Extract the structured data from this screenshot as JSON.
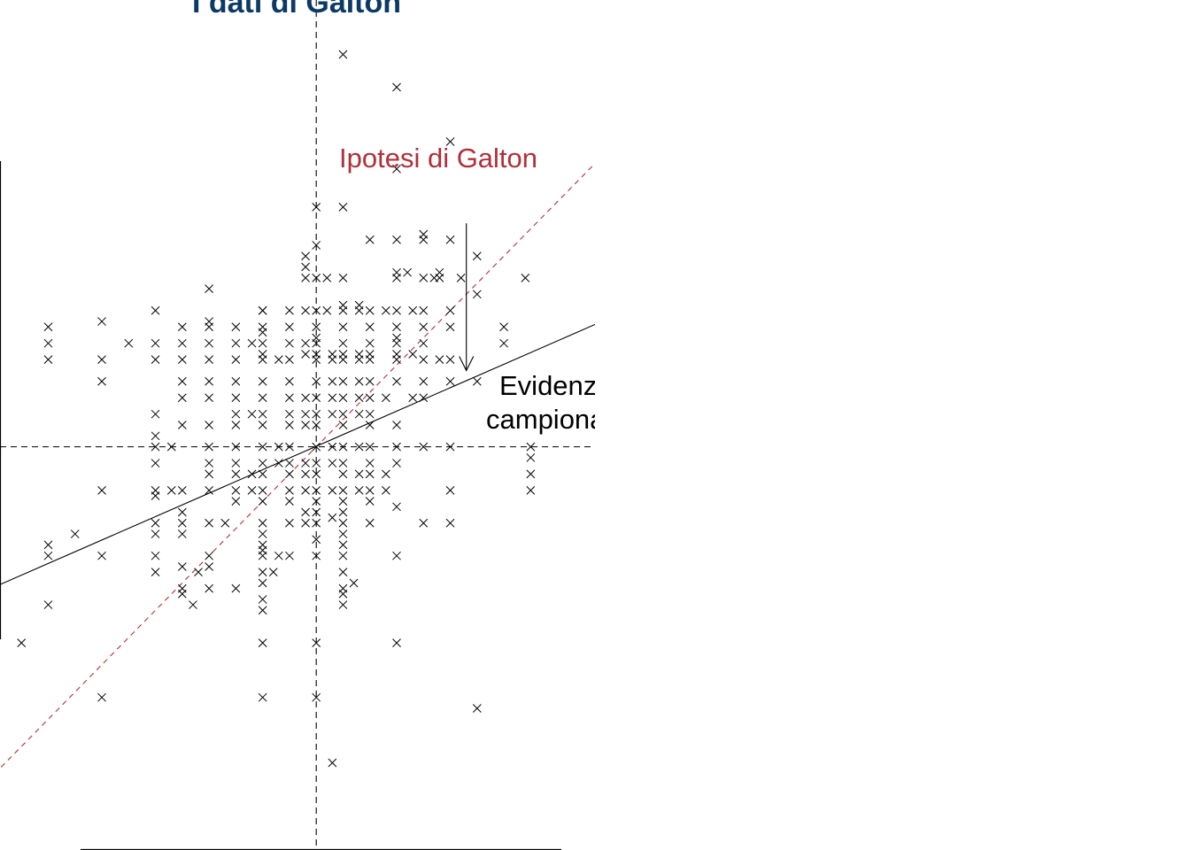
{
  "chart_data": {
    "type": "scatter",
    "title": "I dati di Galton",
    "marker": "x",
    "xlabel": "",
    "ylabel": "",
    "xlim": [
      62.4,
      73.5
    ],
    "ylim": [
      60.7,
      76.3
    ],
    "mean_x": 68.3,
    "mean_y": 68.1,
    "guides": {
      "mean_lines": "dashed",
      "color": "#000000"
    },
    "hypothesis_line": {
      "label": "Ipotesi di Galton",
      "slope": 1,
      "intercept": -0.2,
      "style": "dashed",
      "color": "#b0303a"
    },
    "regression_line": {
      "label": "Evidenza campionaria",
      "label_lines": [
        "Evidenza",
        "campionaria"
      ],
      "slope": 0.43,
      "intercept": 38.74,
      "style": "solid",
      "color": "#000000"
    },
    "arrow": {
      "x": 71.1,
      "from_y": 72.2,
      "to_y": 69.5,
      "color": "#000000"
    },
    "points": [
      [
        68.8,
        75.3
      ],
      [
        69.8,
        74.7
      ],
      [
        70.8,
        73.7
      ],
      [
        69.8,
        73.2
      ],
      [
        68.3,
        72.5
      ],
      [
        68.8,
        72.5
      ],
      [
        68.3,
        71.8
      ],
      [
        68.1,
        71.6
      ],
      [
        69.3,
        71.9
      ],
      [
        69.8,
        71.9
      ],
      [
        70.3,
        71.9
      ],
      [
        70.3,
        72.0
      ],
      [
        70.8,
        71.9
      ],
      [
        71.3,
        71.6
      ],
      [
        68.1,
        71.4
      ],
      [
        68.1,
        71.2
      ],
      [
        68.3,
        71.2
      ],
      [
        68.5,
        71.2
      ],
      [
        68.8,
        71.2
      ],
      [
        69.8,
        71.3
      ],
      [
        70.0,
        71.3
      ],
      [
        69.8,
        71.2
      ],
      [
        70.3,
        71.2
      ],
      [
        70.5,
        71.2
      ],
      [
        70.6,
        71.2
      ],
      [
        71.0,
        71.2
      ],
      [
        72.2,
        71.2
      ],
      [
        70.6,
        71.3
      ],
      [
        66.3,
        71.0
      ],
      [
        71.3,
        70.9
      ],
      [
        68.8,
        70.7
      ],
      [
        69.1,
        70.7
      ],
      [
        67.3,
        70.6
      ],
      [
        64.3,
        70.4
      ],
      [
        65.3,
        70.6
      ],
      [
        66.3,
        70.4
      ],
      [
        67.3,
        70.6
      ],
      [
        67.8,
        70.6
      ],
      [
        68.1,
        70.6
      ],
      [
        68.3,
        70.6
      ],
      [
        68.5,
        70.6
      ],
      [
        68.8,
        70.6
      ],
      [
        69.1,
        70.6
      ],
      [
        69.3,
        70.6
      ],
      [
        69.6,
        70.6
      ],
      [
        69.8,
        70.6
      ],
      [
        70.1,
        70.6
      ],
      [
        70.3,
        70.6
      ],
      [
        70.8,
        70.6
      ],
      [
        63.3,
        70.3
      ],
      [
        65.8,
        70.3
      ],
      [
        66.3,
        70.3
      ],
      [
        66.8,
        70.3
      ],
      [
        67.3,
        70.3
      ],
      [
        67.3,
        70.2
      ],
      [
        67.8,
        70.3
      ],
      [
        68.3,
        70.3
      ],
      [
        68.3,
        70.1
      ],
      [
        68.8,
        70.3
      ],
      [
        69.3,
        70.3
      ],
      [
        69.8,
        70.3
      ],
      [
        69.8,
        70.1
      ],
      [
        70.3,
        70.3
      ],
      [
        70.8,
        70.3
      ],
      [
        71.8,
        70.3
      ],
      [
        63.3,
        70.0
      ],
      [
        64.8,
        70.0
      ],
      [
        65.3,
        70.0
      ],
      [
        65.8,
        70.0
      ],
      [
        66.3,
        70.0
      ],
      [
        66.8,
        70.0
      ],
      [
        67.1,
        70.0
      ],
      [
        67.3,
        70.0
      ],
      [
        67.8,
        70.0
      ],
      [
        68.1,
        70.0
      ],
      [
        68.3,
        70.0
      ],
      [
        68.8,
        70.0
      ],
      [
        69.3,
        70.0
      ],
      [
        69.8,
        70.0
      ],
      [
        70.3,
        70.0
      ],
      [
        71.8,
        70.0
      ],
      [
        67.3,
        69.8
      ],
      [
        68.1,
        69.8
      ],
      [
        68.3,
        69.8
      ],
      [
        68.6,
        69.8
      ],
      [
        68.8,
        69.8
      ],
      [
        69.1,
        69.8
      ],
      [
        69.3,
        69.8
      ],
      [
        69.8,
        69.8
      ],
      [
        70.1,
        69.8
      ],
      [
        63.3,
        69.7
      ],
      [
        64.3,
        69.7
      ],
      [
        65.3,
        69.7
      ],
      [
        65.8,
        69.7
      ],
      [
        66.3,
        69.7
      ],
      [
        66.8,
        69.7
      ],
      [
        67.3,
        69.7
      ],
      [
        67.6,
        69.7
      ],
      [
        67.8,
        69.7
      ],
      [
        68.3,
        69.7
      ],
      [
        68.6,
        69.7
      ],
      [
        68.8,
        69.7
      ],
      [
        69.1,
        69.7
      ],
      [
        69.3,
        69.7
      ],
      [
        69.8,
        69.7
      ],
      [
        70.3,
        69.7
      ],
      [
        70.6,
        69.7
      ],
      [
        70.8,
        69.7
      ],
      [
        64.3,
        69.3
      ],
      [
        65.8,
        69.3
      ],
      [
        66.3,
        69.3
      ],
      [
        66.8,
        69.3
      ],
      [
        67.3,
        69.3
      ],
      [
        67.8,
        69.3
      ],
      [
        68.3,
        69.3
      ],
      [
        68.6,
        69.3
      ],
      [
        68.8,
        69.3
      ],
      [
        69.1,
        69.3
      ],
      [
        69.3,
        69.3
      ],
      [
        69.8,
        69.3
      ],
      [
        70.3,
        69.3
      ],
      [
        70.8,
        69.3
      ],
      [
        71.3,
        69.3
      ],
      [
        65.8,
        69.0
      ],
      [
        66.3,
        69.0
      ],
      [
        66.8,
        69.0
      ],
      [
        67.3,
        69.0
      ],
      [
        67.8,
        69.0
      ],
      [
        68.1,
        69.0
      ],
      [
        68.3,
        69.0
      ],
      [
        68.6,
        69.0
      ],
      [
        68.8,
        69.0
      ],
      [
        69.1,
        69.0
      ],
      [
        69.3,
        69.0
      ],
      [
        69.6,
        69.0
      ],
      [
        70.1,
        69.0
      ],
      [
        70.3,
        69.0
      ],
      [
        65.3,
        68.7
      ],
      [
        66.8,
        68.7
      ],
      [
        67.1,
        68.7
      ],
      [
        67.3,
        68.7
      ],
      [
        67.8,
        68.7
      ],
      [
        68.1,
        68.7
      ],
      [
        68.3,
        68.7
      ],
      [
        68.6,
        68.7
      ],
      [
        68.8,
        68.7
      ],
      [
        69.1,
        68.7
      ],
      [
        69.3,
        68.7
      ],
      [
        65.8,
        68.5
      ],
      [
        66.3,
        68.5
      ],
      [
        66.8,
        68.5
      ],
      [
        67.3,
        68.5
      ],
      [
        67.8,
        68.5
      ],
      [
        68.1,
        68.5
      ],
      [
        68.3,
        68.5
      ],
      [
        68.8,
        68.5
      ],
      [
        69.3,
        68.5
      ],
      [
        69.8,
        68.5
      ],
      [
        65.3,
        68.3
      ],
      [
        65.3,
        68.1
      ],
      [
        65.6,
        68.1
      ],
      [
        66.3,
        68.1
      ],
      [
        66.8,
        68.1
      ],
      [
        67.3,
        68.1
      ],
      [
        67.6,
        68.1
      ],
      [
        67.8,
        68.1
      ],
      [
        68.3,
        68.1
      ],
      [
        68.6,
        68.1
      ],
      [
        68.8,
        68.1
      ],
      [
        69.1,
        68.1
      ],
      [
        69.3,
        68.1
      ],
      [
        69.8,
        68.1
      ],
      [
        70.3,
        68.1
      ],
      [
        70.8,
        68.1
      ],
      [
        72.3,
        68.1
      ],
      [
        72.3,
        67.9
      ],
      [
        65.3,
        67.8
      ],
      [
        66.3,
        67.8
      ],
      [
        66.8,
        67.8
      ],
      [
        67.3,
        67.8
      ],
      [
        67.6,
        67.8
      ],
      [
        67.8,
        67.8
      ],
      [
        68.1,
        67.8
      ],
      [
        68.3,
        67.8
      ],
      [
        68.6,
        67.8
      ],
      [
        68.8,
        67.8
      ],
      [
        69.3,
        67.8
      ],
      [
        69.8,
        67.8
      ],
      [
        66.3,
        67.6
      ],
      [
        66.8,
        67.6
      ],
      [
        67.1,
        67.6
      ],
      [
        67.3,
        67.6
      ],
      [
        67.8,
        67.6
      ],
      [
        68.1,
        67.6
      ],
      [
        68.3,
        67.6
      ],
      [
        68.8,
        67.6
      ],
      [
        69.1,
        67.6
      ],
      [
        69.3,
        67.6
      ],
      [
        69.6,
        67.6
      ],
      [
        72.3,
        67.6
      ],
      [
        64.3,
        67.3
      ],
      [
        65.3,
        67.3
      ],
      [
        65.6,
        67.3
      ],
      [
        65.8,
        67.3
      ],
      [
        66.3,
        67.3
      ],
      [
        66.8,
        67.3
      ],
      [
        67.1,
        67.3
      ],
      [
        67.3,
        67.3
      ],
      [
        67.8,
        67.3
      ],
      [
        68.1,
        67.3
      ],
      [
        68.3,
        67.3
      ],
      [
        68.6,
        67.3
      ],
      [
        68.8,
        67.3
      ],
      [
        69.1,
        67.3
      ],
      [
        69.3,
        67.3
      ],
      [
        69.6,
        67.3
      ],
      [
        70.8,
        67.3
      ],
      [
        72.3,
        67.3
      ],
      [
        65.3,
        67.2
      ],
      [
        66.8,
        67.1
      ],
      [
        67.3,
        67.1
      ],
      [
        67.8,
        67.1
      ],
      [
        68.3,
        67.1
      ],
      [
        68.8,
        67.1
      ],
      [
        69.3,
        67.1
      ],
      [
        69.8,
        67.0
      ],
      [
        65.8,
        66.9
      ],
      [
        68.1,
        66.9
      ],
      [
        68.3,
        66.9
      ],
      [
        68.6,
        66.8
      ],
      [
        68.8,
        66.9
      ],
      [
        65.3,
        66.7
      ],
      [
        65.8,
        66.7
      ],
      [
        66.3,
        66.7
      ],
      [
        66.6,
        66.7
      ],
      [
        67.3,
        66.7
      ],
      [
        67.3,
        66.5
      ],
      [
        67.8,
        66.7
      ],
      [
        68.1,
        66.7
      ],
      [
        68.3,
        66.7
      ],
      [
        68.8,
        66.7
      ],
      [
        69.3,
        66.7
      ],
      [
        70.3,
        66.7
      ],
      [
        70.8,
        66.7
      ],
      [
        63.8,
        66.5
      ],
      [
        65.3,
        66.5
      ],
      [
        65.8,
        66.5
      ],
      [
        67.3,
        66.3
      ],
      [
        67.3,
        66.2
      ],
      [
        68.3,
        66.4
      ],
      [
        68.8,
        66.5
      ],
      [
        68.8,
        66.3
      ],
      [
        63.3,
        66.3
      ],
      [
        63.3,
        66.1
      ],
      [
        64.3,
        66.1
      ],
      [
        65.3,
        66.1
      ],
      [
        66.3,
        66.1
      ],
      [
        67.3,
        66.1
      ],
      [
        67.6,
        66.1
      ],
      [
        67.8,
        66.1
      ],
      [
        68.3,
        66.1
      ],
      [
        68.8,
        66.1
      ],
      [
        69.8,
        66.1
      ],
      [
        65.8,
        65.9
      ],
      [
        66.1,
        65.8
      ],
      [
        66.3,
        65.9
      ],
      [
        65.3,
        65.8
      ],
      [
        67.3,
        65.8
      ],
      [
        67.3,
        65.6
      ],
      [
        67.5,
        65.8
      ],
      [
        68.8,
        65.8
      ],
      [
        69.0,
        65.6
      ],
      [
        65.8,
        65.5
      ],
      [
        65.8,
        65.4
      ],
      [
        66.3,
        65.5
      ],
      [
        66.8,
        65.5
      ],
      [
        67.3,
        65.3
      ],
      [
        68.8,
        65.5
      ],
      [
        68.8,
        65.4
      ],
      [
        63.3,
        65.2
      ],
      [
        66.0,
        65.2
      ],
      [
        67.3,
        65.1
      ],
      [
        68.8,
        65.2
      ],
      [
        62.8,
        64.5
      ],
      [
        67.3,
        64.5
      ],
      [
        68.3,
        64.5
      ],
      [
        69.8,
        64.5
      ],
      [
        64.3,
        63.5
      ],
      [
        67.3,
        63.5
      ],
      [
        68.3,
        63.5
      ],
      [
        71.3,
        63.3
      ],
      [
        68.6,
        62.3
      ]
    ]
  }
}
